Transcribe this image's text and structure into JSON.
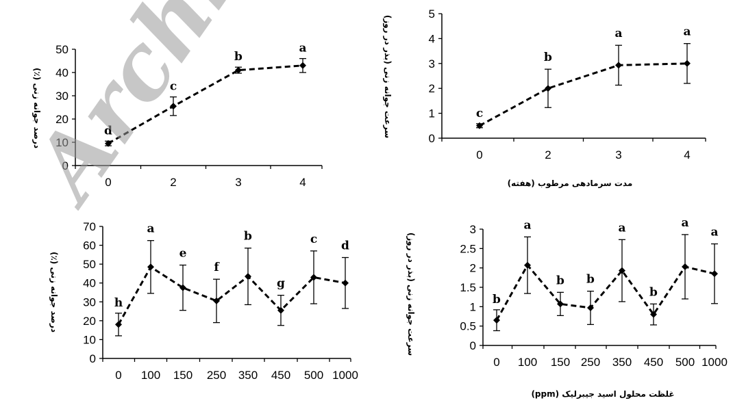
{
  "watermark": "Archive",
  "chart_data": [
    {
      "type": "line",
      "ylabel": "درصد جوانه زنی (٪)",
      "xlabel": "",
      "categories": [
        "0",
        "2",
        "3",
        "4"
      ],
      "yticks": [
        "0",
        "10",
        "20",
        "30",
        "40",
        "50"
      ],
      "ylim": [
        0,
        50
      ],
      "values": [
        9.5,
        25.5,
        41,
        43
      ],
      "errors": [
        1,
        4,
        1.3,
        3
      ],
      "significance": [
        "d",
        "c",
        "b",
        "a"
      ]
    },
    {
      "type": "line",
      "ylabel": "سرعت جوانه زنی (بذر در روز)",
      "xlabel": "مدت سرمادهی مرطوب (هفته)",
      "categories": [
        "0",
        "2",
        "3",
        "4"
      ],
      "yticks": [
        "0",
        "1",
        "2",
        "3",
        "4",
        "5"
      ],
      "ylim": [
        0,
        5
      ],
      "values": [
        0.5,
        2.0,
        2.93,
        3.0
      ],
      "errors": [
        0.08,
        0.77,
        0.8,
        0.8
      ],
      "significance": [
        "c",
        "b",
        "a",
        "a"
      ]
    },
    {
      "type": "line",
      "ylabel": "درصد جوانه زنی (٪)",
      "xlabel": "",
      "categories": [
        "0",
        "100",
        "150",
        "250",
        "350",
        "450",
        "500",
        "1000"
      ],
      "yticks": [
        "0",
        "10",
        "20",
        "30",
        "40",
        "50",
        "60",
        "70"
      ],
      "ylim": [
        0,
        70
      ],
      "values": [
        18,
        48.5,
        37.5,
        30.5,
        43.5,
        25.5,
        43,
        40
      ],
      "errors": [
        6,
        14,
        12,
        11.5,
        15,
        8,
        14,
        13.5
      ],
      "significance": [
        "h",
        "a",
        "e",
        "f",
        "b",
        "g",
        "c",
        "d"
      ]
    },
    {
      "type": "line",
      "ylabel": "سرعت جوانه زنی (بذر در روز)",
      "xlabel": "غلظت محلول اسید جیبرلیک (ppm)",
      "categories": [
        "0",
        "100",
        "150",
        "250",
        "350",
        "450",
        "500",
        "1000"
      ],
      "yticks": [
        "0",
        "0.5",
        "1",
        "1.5",
        "2",
        "2.5",
        "3"
      ],
      "ylim": [
        0,
        3
      ],
      "values": [
        0.65,
        2.07,
        1.07,
        0.97,
        1.93,
        0.8,
        2.03,
        1.85
      ],
      "errors": [
        0.27,
        0.73,
        0.3,
        0.43,
        0.8,
        0.27,
        0.83,
        0.77
      ],
      "significance": [
        "b",
        "a",
        "b",
        "b",
        "a",
        "b",
        "a",
        "a"
      ]
    }
  ]
}
